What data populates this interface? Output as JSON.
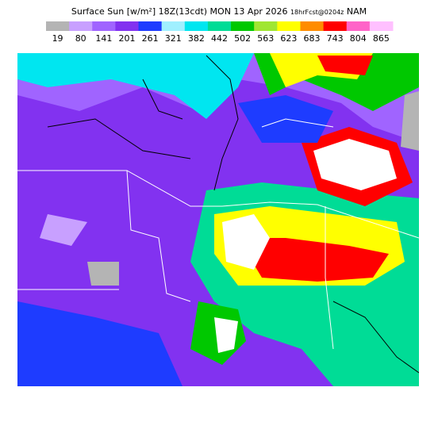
{
  "header": {
    "title": "Surface Sun [w/m²] 18Z(13cdt) MON 13 Apr 2026",
    "run": "18hrFcst@0204z",
    "model": "NAM"
  },
  "colorbar": {
    "labels": [
      19,
      80,
      141,
      201,
      261,
      321,
      382,
      442,
      502,
      563,
      623,
      683,
      743,
      804,
      865
    ],
    "colors": [
      "#b4b4b4",
      "#c8a0ff",
      "#a064ff",
      "#8232f0",
      "#1e3cff",
      "#a0f0ff",
      "#00e6f0",
      "#00dc96",
      "#00c800",
      "#a0e632",
      "#ffff00",
      "#ff8c00",
      "#ff0000",
      "#ff64c8",
      "#ffc0ff"
    ]
  }
}
